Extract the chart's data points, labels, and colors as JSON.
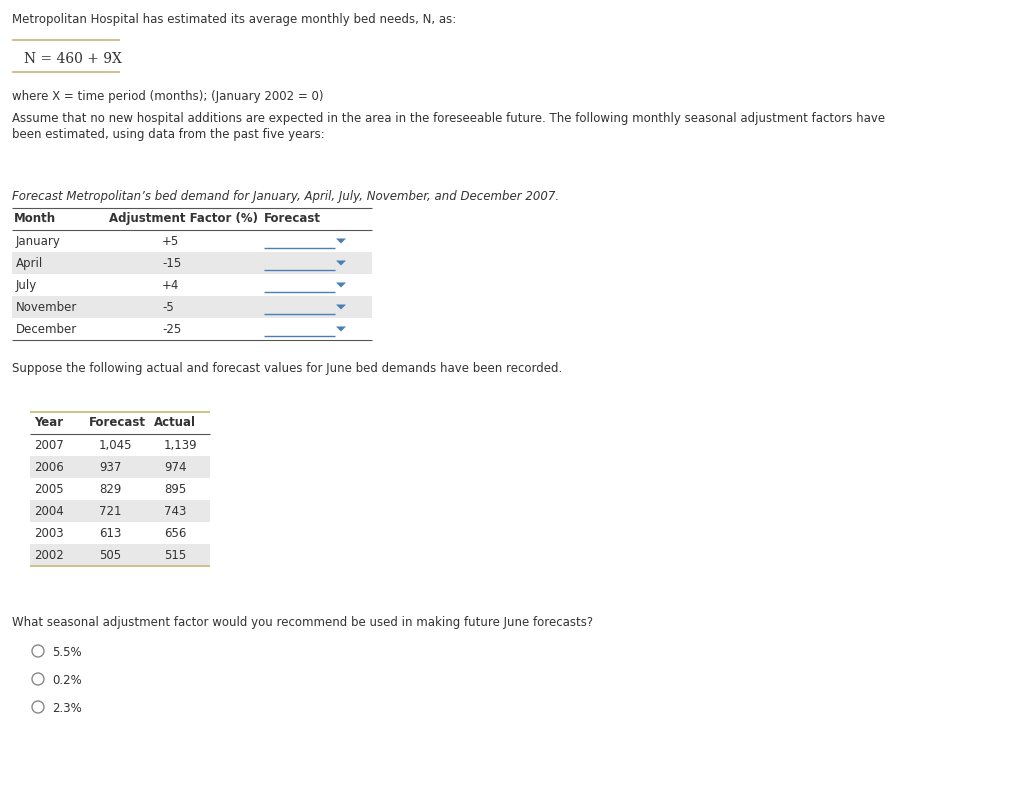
{
  "bg_color": "#ffffff",
  "text_color": "#333333",
  "header_text": "Metropolitan Hospital has estimated its average monthly bed needs, N, as:",
  "formula": "N = 460 + 9X",
  "where_text": "where X = time period (months); (January 2002 = 0)",
  "assume_line1": "Assume that no new hospital additions are expected in the area in the foreseeable future. The following monthly seasonal adjustment factors have",
  "assume_line2": "been estimated, using data from the past five years:",
  "italic_text": "Forecast Metropolitan’s bed demand for January, April, July, November, and December 2007.",
  "table1_headers": [
    "Month",
    "Adjustment Factor (%)",
    "Forecast"
  ],
  "table1_rows": [
    [
      "January",
      "+5"
    ],
    [
      "April",
      "-15"
    ],
    [
      "July",
      "+4"
    ],
    [
      "November",
      "-5"
    ],
    [
      "December",
      "-25"
    ]
  ],
  "table1_row_colors": [
    "#ffffff",
    "#e8e8e8",
    "#ffffff",
    "#e8e8e8",
    "#ffffff"
  ],
  "suppose_text": "Suppose the following actual and forecast values for June bed demands have been recorded.",
  "table2_headers": [
    "Year",
    "Forecast",
    "Actual"
  ],
  "table2_rows": [
    [
      "2007",
      "1,045",
      "1,139"
    ],
    [
      "2006",
      "937",
      "974"
    ],
    [
      "2005",
      "829",
      "895"
    ],
    [
      "2004",
      "721",
      "743"
    ],
    [
      "2003",
      "613",
      "656"
    ],
    [
      "2002",
      "505",
      "515"
    ]
  ],
  "table2_row_colors": [
    "#ffffff",
    "#e8e8e8",
    "#ffffff",
    "#e8e8e8",
    "#ffffff",
    "#e8e8e8"
  ],
  "question_text": "What seasonal adjustment factor would you recommend be used in making future June forecasts?",
  "options": [
    "5.5%",
    "0.2%",
    "2.3%"
  ],
  "gold_line_color": "#c8b87a",
  "dropdown_color": "#4a7fb5",
  "dark_line_color": "#555555",
  "font_size": 8.5,
  "formula_font_size": 10
}
